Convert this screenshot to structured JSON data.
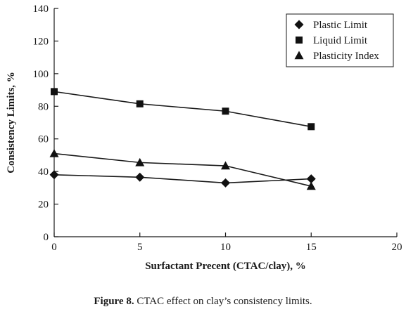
{
  "chart_data": {
    "type": "line",
    "x": [
      0,
      5,
      10,
      15
    ],
    "xlim": [
      0,
      20
    ],
    "ylim": [
      0,
      140
    ],
    "xticks": [
      0,
      5,
      10,
      15,
      20
    ],
    "yticks": [
      0,
      20,
      40,
      60,
      80,
      100,
      120,
      140
    ],
    "xlabel": "Surfactant Precent (CTAC/clay), %",
    "ylabel": "Consistency Limits, %",
    "grid": false,
    "legend_position": "top-right",
    "series": [
      {
        "name": "Plastic Limit",
        "marker": "diamond",
        "values": [
          38,
          36.5,
          33,
          35.5
        ]
      },
      {
        "name": "Liquid Limit",
        "marker": "square",
        "values": [
          89,
          81.5,
          77,
          67.5
        ]
      },
      {
        "name": "Plasticity Index",
        "marker": "triangle",
        "values": [
          51,
          45.5,
          43.5,
          31
        ]
      }
    ],
    "colors": {
      "line": "#1a1a1a",
      "marker": "#111111"
    }
  },
  "caption": {
    "label": "Figure 8.",
    "text": "CTAC effect on clay’s consistency limits."
  }
}
